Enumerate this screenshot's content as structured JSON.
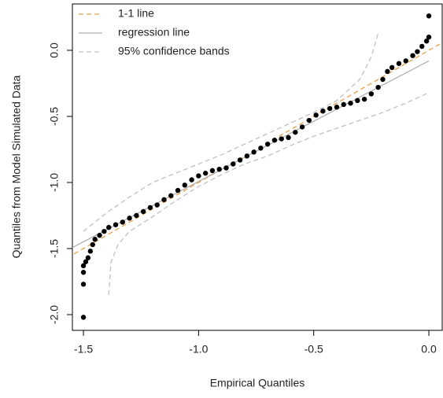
{
  "chart_data": {
    "type": "scatter",
    "x_label": "Empirical Quantiles",
    "y_label": "Quantiles from Model Simulated Data",
    "xlim": [
      -1.548,
      0.058
    ],
    "ylim": [
      -2.119,
      0.351
    ],
    "xticks": [
      -1.5,
      {
        "value": -1.0,
        "label": "-1.0"
      },
      -0.5,
      {
        "value": 0.0,
        "label": "0.0"
      }
    ],
    "yticks": [
      {
        "value": 0.0,
        "label": "0.0"
      },
      -0.5,
      {
        "value": -1.0,
        "label": "-1.0"
      },
      -1.5,
      {
        "value": -2.0,
        "label": "-2.0"
      }
    ],
    "color": "#000000",
    "x": [
      -1.5,
      -1.5,
      -1.5,
      -1.5,
      -1.49,
      -1.48,
      -1.47,
      -1.46,
      -1.45,
      -1.43,
      -1.41,
      -1.39,
      -1.36,
      -1.33,
      -1.3,
      -1.27,
      -1.24,
      -1.21,
      -1.18,
      -1.15,
      -1.12,
      -1.09,
      -1.06,
      -1.03,
      -1.0,
      -0.97,
      -0.94,
      -0.91,
      -0.88,
      -0.85,
      -0.82,
      -0.79,
      -0.76,
      -0.73,
      -0.7,
      -0.67,
      -0.64,
      -0.61,
      -0.58,
      -0.55,
      -0.52,
      -0.49,
      -0.46,
      -0.43,
      -0.4,
      -0.37,
      -0.34,
      -0.31,
      -0.28,
      -0.25,
      -0.22,
      -0.2,
      -0.18,
      -0.16,
      -0.13,
      -0.1,
      -0.07,
      -0.05,
      -0.03,
      -0.01,
      0.0,
      0.0
    ],
    "y": [
      -2.02,
      -1.77,
      -1.68,
      -1.63,
      -1.6,
      -1.57,
      -1.52,
      -1.47,
      -1.43,
      -1.4,
      -1.37,
      -1.34,
      -1.32,
      -1.3,
      -1.27,
      -1.25,
      -1.22,
      -1.19,
      -1.17,
      -1.13,
      -1.1,
      -1.06,
      -1.02,
      -0.98,
      -0.95,
      -0.93,
      -0.91,
      -0.9,
      -0.89,
      -0.86,
      -0.83,
      -0.8,
      -0.77,
      -0.74,
      -0.71,
      -0.68,
      -0.67,
      -0.66,
      -0.62,
      -0.58,
      -0.53,
      -0.49,
      -0.46,
      -0.44,
      -0.43,
      -0.41,
      -0.4,
      -0.38,
      -0.37,
      -0.33,
      -0.28,
      -0.22,
      -0.16,
      -0.13,
      -0.1,
      -0.08,
      -0.04,
      -0.01,
      0.03,
      0.07,
      0.1,
      0.26
    ],
    "lines": [
      {
        "name": "1-1 line",
        "color": "#e8a048",
        "dash": true,
        "x": [
          -1.6,
          0.1
        ],
        "y": [
          -1.6,
          0.1
        ]
      },
      {
        "name": "regression line",
        "color": "#b0b0b0",
        "dash": false,
        "x": [
          -1.6,
          0.0
        ],
        "y": [
          -1.54,
          -0.08
        ]
      },
      {
        "name": "95% confidence bands",
        "color": "#c0c0c0",
        "dash": true,
        "x": [
          -1.5,
          -1.4,
          -1.3,
          -1.2,
          -1.1,
          -1.0,
          -0.9,
          -0.8,
          -0.7,
          -0.6,
          -0.5,
          -0.4,
          -0.3,
          -0.25,
          -0.22
        ],
        "y": [
          -1.37,
          -1.23,
          -1.11,
          -1.0,
          -0.93,
          -0.86,
          -0.79,
          -0.71,
          -0.63,
          -0.55,
          -0.47,
          -0.38,
          -0.22,
          -0.05,
          0.13
        ]
      },
      {
        "name": null,
        "color": "#c0c0c0",
        "dash": true,
        "x": [
          -1.39,
          -1.38,
          -1.35,
          -1.3,
          -1.2,
          -1.1,
          -1.0,
          -0.9,
          -0.8,
          -0.7,
          -0.6,
          -0.5,
          -0.4,
          -0.3,
          -0.2,
          -0.1,
          0.0
        ],
        "y": [
          -1.85,
          -1.6,
          -1.47,
          -1.37,
          -1.26,
          -1.14,
          -1.03,
          -0.94,
          -0.86,
          -0.8,
          -0.72,
          -0.65,
          -0.59,
          -0.53,
          -0.47,
          -0.4,
          -0.32
        ]
      }
    ]
  }
}
